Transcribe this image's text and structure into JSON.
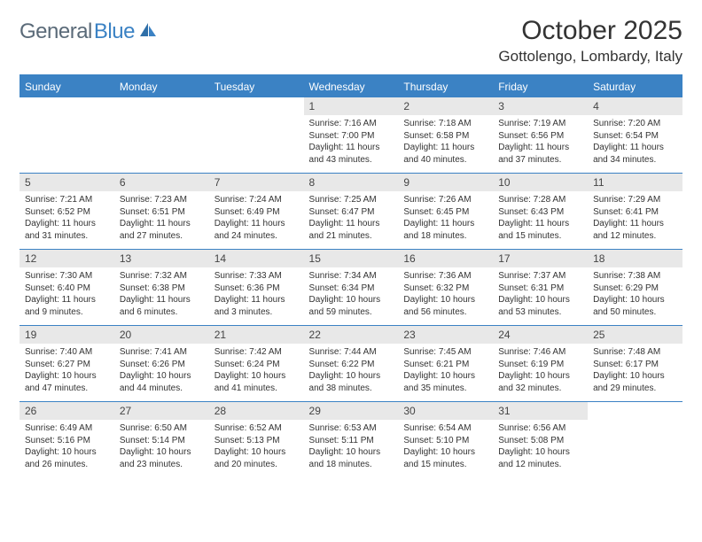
{
  "brand": {
    "name_part1": "General",
    "name_part2": "Blue"
  },
  "title": {
    "month_year": "October 2025",
    "location": "Gottolengo, Lombardy, Italy"
  },
  "colors": {
    "header_blue": "#3b82c4",
    "daynum_bg": "#e8e8e8",
    "text": "#333333",
    "logo_gray": "#5a6a78"
  },
  "day_names": [
    "Sunday",
    "Monday",
    "Tuesday",
    "Wednesday",
    "Thursday",
    "Friday",
    "Saturday"
  ],
  "weeks": [
    [
      {
        "n": "",
        "sr": "",
        "ss": "",
        "dl": ""
      },
      {
        "n": "",
        "sr": "",
        "ss": "",
        "dl": ""
      },
      {
        "n": "",
        "sr": "",
        "ss": "",
        "dl": ""
      },
      {
        "n": "1",
        "sr": "Sunrise: 7:16 AM",
        "ss": "Sunset: 7:00 PM",
        "dl": "Daylight: 11 hours and 43 minutes."
      },
      {
        "n": "2",
        "sr": "Sunrise: 7:18 AM",
        "ss": "Sunset: 6:58 PM",
        "dl": "Daylight: 11 hours and 40 minutes."
      },
      {
        "n": "3",
        "sr": "Sunrise: 7:19 AM",
        "ss": "Sunset: 6:56 PM",
        "dl": "Daylight: 11 hours and 37 minutes."
      },
      {
        "n": "4",
        "sr": "Sunrise: 7:20 AM",
        "ss": "Sunset: 6:54 PM",
        "dl": "Daylight: 11 hours and 34 minutes."
      }
    ],
    [
      {
        "n": "5",
        "sr": "Sunrise: 7:21 AM",
        "ss": "Sunset: 6:52 PM",
        "dl": "Daylight: 11 hours and 31 minutes."
      },
      {
        "n": "6",
        "sr": "Sunrise: 7:23 AM",
        "ss": "Sunset: 6:51 PM",
        "dl": "Daylight: 11 hours and 27 minutes."
      },
      {
        "n": "7",
        "sr": "Sunrise: 7:24 AM",
        "ss": "Sunset: 6:49 PM",
        "dl": "Daylight: 11 hours and 24 minutes."
      },
      {
        "n": "8",
        "sr": "Sunrise: 7:25 AM",
        "ss": "Sunset: 6:47 PM",
        "dl": "Daylight: 11 hours and 21 minutes."
      },
      {
        "n": "9",
        "sr": "Sunrise: 7:26 AM",
        "ss": "Sunset: 6:45 PM",
        "dl": "Daylight: 11 hours and 18 minutes."
      },
      {
        "n": "10",
        "sr": "Sunrise: 7:28 AM",
        "ss": "Sunset: 6:43 PM",
        "dl": "Daylight: 11 hours and 15 minutes."
      },
      {
        "n": "11",
        "sr": "Sunrise: 7:29 AM",
        "ss": "Sunset: 6:41 PM",
        "dl": "Daylight: 11 hours and 12 minutes."
      }
    ],
    [
      {
        "n": "12",
        "sr": "Sunrise: 7:30 AM",
        "ss": "Sunset: 6:40 PM",
        "dl": "Daylight: 11 hours and 9 minutes."
      },
      {
        "n": "13",
        "sr": "Sunrise: 7:32 AM",
        "ss": "Sunset: 6:38 PM",
        "dl": "Daylight: 11 hours and 6 minutes."
      },
      {
        "n": "14",
        "sr": "Sunrise: 7:33 AM",
        "ss": "Sunset: 6:36 PM",
        "dl": "Daylight: 11 hours and 3 minutes."
      },
      {
        "n": "15",
        "sr": "Sunrise: 7:34 AM",
        "ss": "Sunset: 6:34 PM",
        "dl": "Daylight: 10 hours and 59 minutes."
      },
      {
        "n": "16",
        "sr": "Sunrise: 7:36 AM",
        "ss": "Sunset: 6:32 PM",
        "dl": "Daylight: 10 hours and 56 minutes."
      },
      {
        "n": "17",
        "sr": "Sunrise: 7:37 AM",
        "ss": "Sunset: 6:31 PM",
        "dl": "Daylight: 10 hours and 53 minutes."
      },
      {
        "n": "18",
        "sr": "Sunrise: 7:38 AM",
        "ss": "Sunset: 6:29 PM",
        "dl": "Daylight: 10 hours and 50 minutes."
      }
    ],
    [
      {
        "n": "19",
        "sr": "Sunrise: 7:40 AM",
        "ss": "Sunset: 6:27 PM",
        "dl": "Daylight: 10 hours and 47 minutes."
      },
      {
        "n": "20",
        "sr": "Sunrise: 7:41 AM",
        "ss": "Sunset: 6:26 PM",
        "dl": "Daylight: 10 hours and 44 minutes."
      },
      {
        "n": "21",
        "sr": "Sunrise: 7:42 AM",
        "ss": "Sunset: 6:24 PM",
        "dl": "Daylight: 10 hours and 41 minutes."
      },
      {
        "n": "22",
        "sr": "Sunrise: 7:44 AM",
        "ss": "Sunset: 6:22 PM",
        "dl": "Daylight: 10 hours and 38 minutes."
      },
      {
        "n": "23",
        "sr": "Sunrise: 7:45 AM",
        "ss": "Sunset: 6:21 PM",
        "dl": "Daylight: 10 hours and 35 minutes."
      },
      {
        "n": "24",
        "sr": "Sunrise: 7:46 AM",
        "ss": "Sunset: 6:19 PM",
        "dl": "Daylight: 10 hours and 32 minutes."
      },
      {
        "n": "25",
        "sr": "Sunrise: 7:48 AM",
        "ss": "Sunset: 6:17 PM",
        "dl": "Daylight: 10 hours and 29 minutes."
      }
    ],
    [
      {
        "n": "26",
        "sr": "Sunrise: 6:49 AM",
        "ss": "Sunset: 5:16 PM",
        "dl": "Daylight: 10 hours and 26 minutes."
      },
      {
        "n": "27",
        "sr": "Sunrise: 6:50 AM",
        "ss": "Sunset: 5:14 PM",
        "dl": "Daylight: 10 hours and 23 minutes."
      },
      {
        "n": "28",
        "sr": "Sunrise: 6:52 AM",
        "ss": "Sunset: 5:13 PM",
        "dl": "Daylight: 10 hours and 20 minutes."
      },
      {
        "n": "29",
        "sr": "Sunrise: 6:53 AM",
        "ss": "Sunset: 5:11 PM",
        "dl": "Daylight: 10 hours and 18 minutes."
      },
      {
        "n": "30",
        "sr": "Sunrise: 6:54 AM",
        "ss": "Sunset: 5:10 PM",
        "dl": "Daylight: 10 hours and 15 minutes."
      },
      {
        "n": "31",
        "sr": "Sunrise: 6:56 AM",
        "ss": "Sunset: 5:08 PM",
        "dl": "Daylight: 10 hours and 12 minutes."
      },
      {
        "n": "",
        "sr": "",
        "ss": "",
        "dl": ""
      }
    ]
  ]
}
